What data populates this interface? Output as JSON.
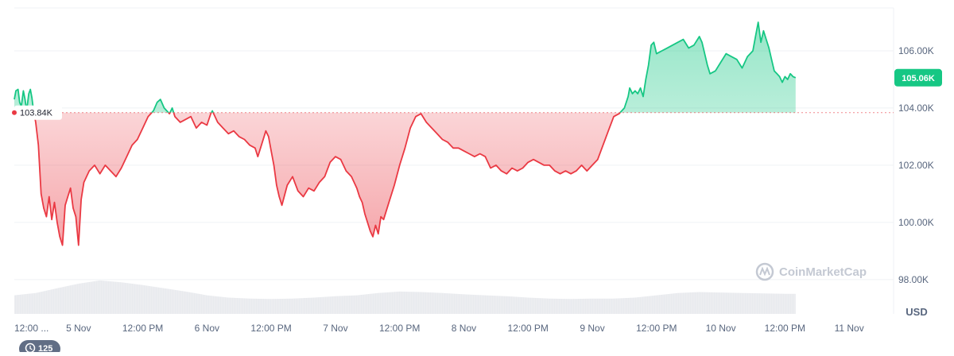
{
  "chart_data": {
    "type": "area",
    "currency_label": "USD",
    "watermark": "CoinMarketCap",
    "reference_price_label": "103.84K",
    "reference_price": 103840,
    "current_price_label": "105.06K",
    "current_price": 105060,
    "events_badge": "125",
    "y_ticks": [
      {
        "label": "106.00K",
        "value": 106000
      },
      {
        "label": "104.00K",
        "value": 104000
      },
      {
        "label": "102.00K",
        "value": 102000
      },
      {
        "label": "100.00K",
        "value": 100000
      },
      {
        "label": "98.00K",
        "value": 98000
      }
    ],
    "x_ticks": [
      {
        "label": "12:00 ...",
        "value": 0
      },
      {
        "label": "5 Nov",
        "value": 12
      },
      {
        "label": "12:00 PM",
        "value": 24
      },
      {
        "label": "6 Nov",
        "value": 36
      },
      {
        "label": "12:00 PM",
        "value": 48
      },
      {
        "label": "7 Nov",
        "value": 60
      },
      {
        "label": "12:00 PM",
        "value": 72
      },
      {
        "label": "8 Nov",
        "value": 84
      },
      {
        "label": "12:00 PM",
        "value": 96
      },
      {
        "label": "9 Nov",
        "value": 108
      },
      {
        "label": "12:00 PM",
        "value": 120
      },
      {
        "label": "10 Nov",
        "value": 132
      },
      {
        "label": "12:00 PM",
        "value": 144
      },
      {
        "label": "11 Nov",
        "value": 156
      }
    ],
    "x_range": [
      0,
      164
    ],
    "y_range": [
      96800,
      107500
    ],
    "colors": {
      "up": "#16c784",
      "down": "#ea3943",
      "grid": "#eff2f5",
      "volume": "#e6e8ec",
      "badge_up": "#16c784",
      "pill": "#616e85"
    },
    "series": [
      {
        "values": [
          [
            0,
            104300
          ],
          [
            0.3,
            104600
          ],
          [
            0.7,
            104650
          ],
          [
            1,
            104200
          ],
          [
            1.3,
            104050
          ],
          [
            1.7,
            104600
          ],
          [
            2,
            104300
          ],
          [
            2.3,
            103900
          ],
          [
            2.7,
            104500
          ],
          [
            3,
            104650
          ],
          [
            3.3,
            104350
          ],
          [
            3.6,
            103900
          ],
          [
            4,
            103500
          ],
          [
            4.5,
            102700
          ],
          [
            5,
            101000
          ],
          [
            5.5,
            100500
          ],
          [
            6,
            100200
          ],
          [
            6.5,
            100900
          ],
          [
            7,
            100100
          ],
          [
            7.5,
            100700
          ],
          [
            8,
            100000
          ],
          [
            8.5,
            99500
          ],
          [
            9,
            99200
          ],
          [
            9.5,
            100600
          ],
          [
            10,
            100900
          ],
          [
            10.5,
            101200
          ],
          [
            11,
            100500
          ],
          [
            11.5,
            100200
          ],
          [
            12,
            99200
          ],
          [
            12.5,
            100800
          ],
          [
            13,
            101400
          ],
          [
            14,
            101800
          ],
          [
            15,
            102000
          ],
          [
            16,
            101700
          ],
          [
            17,
            102000
          ],
          [
            18,
            101800
          ],
          [
            19,
            101600
          ],
          [
            20,
            101900
          ],
          [
            21,
            102300
          ],
          [
            22,
            102700
          ],
          [
            23,
            102900
          ],
          [
            24,
            103300
          ],
          [
            25,
            103700
          ],
          [
            26,
            103900
          ],
          [
            26.7,
            104200
          ],
          [
            27.3,
            104300
          ],
          [
            28,
            104000
          ],
          [
            29,
            103800
          ],
          [
            29.5,
            104000
          ],
          [
            30,
            103700
          ],
          [
            31,
            103500
          ],
          [
            32,
            103600
          ],
          [
            33,
            103700
          ],
          [
            34,
            103300
          ],
          [
            35,
            103500
          ],
          [
            36,
            103400
          ],
          [
            36.7,
            103800
          ],
          [
            37,
            103900
          ],
          [
            38,
            103500
          ],
          [
            39,
            103300
          ],
          [
            40,
            103100
          ],
          [
            41,
            103200
          ],
          [
            42,
            103000
          ],
          [
            43,
            102900
          ],
          [
            44,
            102700
          ],
          [
            45,
            102600
          ],
          [
            45.5,
            102300
          ],
          [
            46,
            102600
          ],
          [
            47,
            103200
          ],
          [
            47.5,
            103000
          ],
          [
            48,
            102500
          ],
          [
            48.5,
            102000
          ],
          [
            49,
            101300
          ],
          [
            49.5,
            100900
          ],
          [
            50,
            100600
          ],
          [
            51,
            101300
          ],
          [
            52,
            101600
          ],
          [
            53,
            101100
          ],
          [
            54,
            100900
          ],
          [
            55,
            101200
          ],
          [
            56,
            101100
          ],
          [
            57,
            101400
          ],
          [
            58,
            101600
          ],
          [
            59,
            102100
          ],
          [
            60,
            102300
          ],
          [
            61,
            102200
          ],
          [
            62,
            101800
          ],
          [
            63,
            101600
          ],
          [
            64,
            101200
          ],
          [
            64.5,
            100900
          ],
          [
            65,
            100700
          ],
          [
            65.5,
            100300
          ],
          [
            66,
            100000
          ],
          [
            66.5,
            99700
          ],
          [
            67,
            99500
          ],
          [
            67.5,
            99900
          ],
          [
            68,
            99600
          ],
          [
            68.5,
            100200
          ],
          [
            69,
            100100
          ],
          [
            70,
            100700
          ],
          [
            71,
            101300
          ],
          [
            72,
            102000
          ],
          [
            73,
            102600
          ],
          [
            74,
            103300
          ],
          [
            75,
            103700
          ],
          [
            76,
            103800
          ],
          [
            77,
            103500
          ],
          [
            78,
            103300
          ],
          [
            79,
            103100
          ],
          [
            80,
            102900
          ],
          [
            81,
            102800
          ],
          [
            82,
            102600
          ],
          [
            83,
            102600
          ],
          [
            84,
            102500
          ],
          [
            85,
            102400
          ],
          [
            86,
            102300
          ],
          [
            87,
            102400
          ],
          [
            88,
            102300
          ],
          [
            89,
            101900
          ],
          [
            90,
            102000
          ],
          [
            91,
            101800
          ],
          [
            92,
            101700
          ],
          [
            93,
            101900
          ],
          [
            94,
            101800
          ],
          [
            95,
            101900
          ],
          [
            96,
            102100
          ],
          [
            97,
            102200
          ],
          [
            98,
            102100
          ],
          [
            99,
            102000
          ],
          [
            100,
            102000
          ],
          [
            101,
            101800
          ],
          [
            102,
            101700
          ],
          [
            103,
            101800
          ],
          [
            104,
            101700
          ],
          [
            105,
            101800
          ],
          [
            106,
            102000
          ],
          [
            106.5,
            101900
          ],
          [
            107,
            101800
          ],
          [
            108,
            102000
          ],
          [
            109,
            102200
          ],
          [
            110,
            102700
          ],
          [
            111,
            103200
          ],
          [
            112,
            103700
          ],
          [
            113,
            103800
          ],
          [
            114,
            104000
          ],
          [
            114.7,
            104400
          ],
          [
            115,
            104700
          ],
          [
            115.5,
            104500
          ],
          [
            116,
            104600
          ],
          [
            116.5,
            104500
          ],
          [
            117,
            104700
          ],
          [
            117.5,
            104400
          ],
          [
            118,
            105000
          ],
          [
            118.5,
            105500
          ],
          [
            119,
            106200
          ],
          [
            119.5,
            106300
          ],
          [
            120,
            105900
          ],
          [
            121,
            106000
          ],
          [
            122,
            106100
          ],
          [
            123,
            106200
          ],
          [
            124,
            106300
          ],
          [
            125,
            106400
          ],
          [
            126,
            106100
          ],
          [
            127,
            106200
          ],
          [
            128,
            106500
          ],
          [
            128.5,
            106300
          ],
          [
            129,
            105900
          ],
          [
            129.5,
            105500
          ],
          [
            130,
            105200
          ],
          [
            131,
            105300
          ],
          [
            132,
            105600
          ],
          [
            133,
            105900
          ],
          [
            134,
            105800
          ],
          [
            135,
            105700
          ],
          [
            136,
            105400
          ],
          [
            137,
            105800
          ],
          [
            138,
            106000
          ],
          [
            138.5,
            106500
          ],
          [
            139,
            107000
          ],
          [
            139.5,
            106300
          ],
          [
            140,
            106700
          ],
          [
            140.5,
            106400
          ],
          [
            141,
            106100
          ],
          [
            141.5,
            105700
          ],
          [
            142,
            105300
          ],
          [
            142.5,
            105200
          ],
          [
            143,
            105100
          ],
          [
            143.5,
            104900
          ],
          [
            144,
            105100
          ],
          [
            144.5,
            105000
          ],
          [
            145,
            105200
          ],
          [
            145.5,
            105100
          ],
          [
            146,
            105060
          ]
        ]
      }
    ],
    "volume_profile": [
      [
        0,
        0.4
      ],
      [
        4,
        0.45
      ],
      [
        8,
        0.55
      ],
      [
        12,
        0.65
      ],
      [
        16,
        0.72
      ],
      [
        20,
        0.68
      ],
      [
        24,
        0.62
      ],
      [
        28,
        0.55
      ],
      [
        32,
        0.48
      ],
      [
        36,
        0.4
      ],
      [
        40,
        0.35
      ],
      [
        44,
        0.33
      ],
      [
        48,
        0.32
      ],
      [
        52,
        0.33
      ],
      [
        56,
        0.35
      ],
      [
        60,
        0.38
      ],
      [
        64,
        0.4
      ],
      [
        68,
        0.45
      ],
      [
        72,
        0.48
      ],
      [
        76,
        0.47
      ],
      [
        80,
        0.45
      ],
      [
        84,
        0.42
      ],
      [
        88,
        0.4
      ],
      [
        92,
        0.38
      ],
      [
        96,
        0.35
      ],
      [
        100,
        0.33
      ],
      [
        104,
        0.32
      ],
      [
        108,
        0.33
      ],
      [
        112,
        0.33
      ],
      [
        116,
        0.35
      ],
      [
        120,
        0.4
      ],
      [
        124,
        0.45
      ],
      [
        128,
        0.47
      ],
      [
        132,
        0.46
      ],
      [
        136,
        0.45
      ],
      [
        140,
        0.44
      ],
      [
        144,
        0.43
      ],
      [
        146,
        0.43
      ]
    ]
  }
}
